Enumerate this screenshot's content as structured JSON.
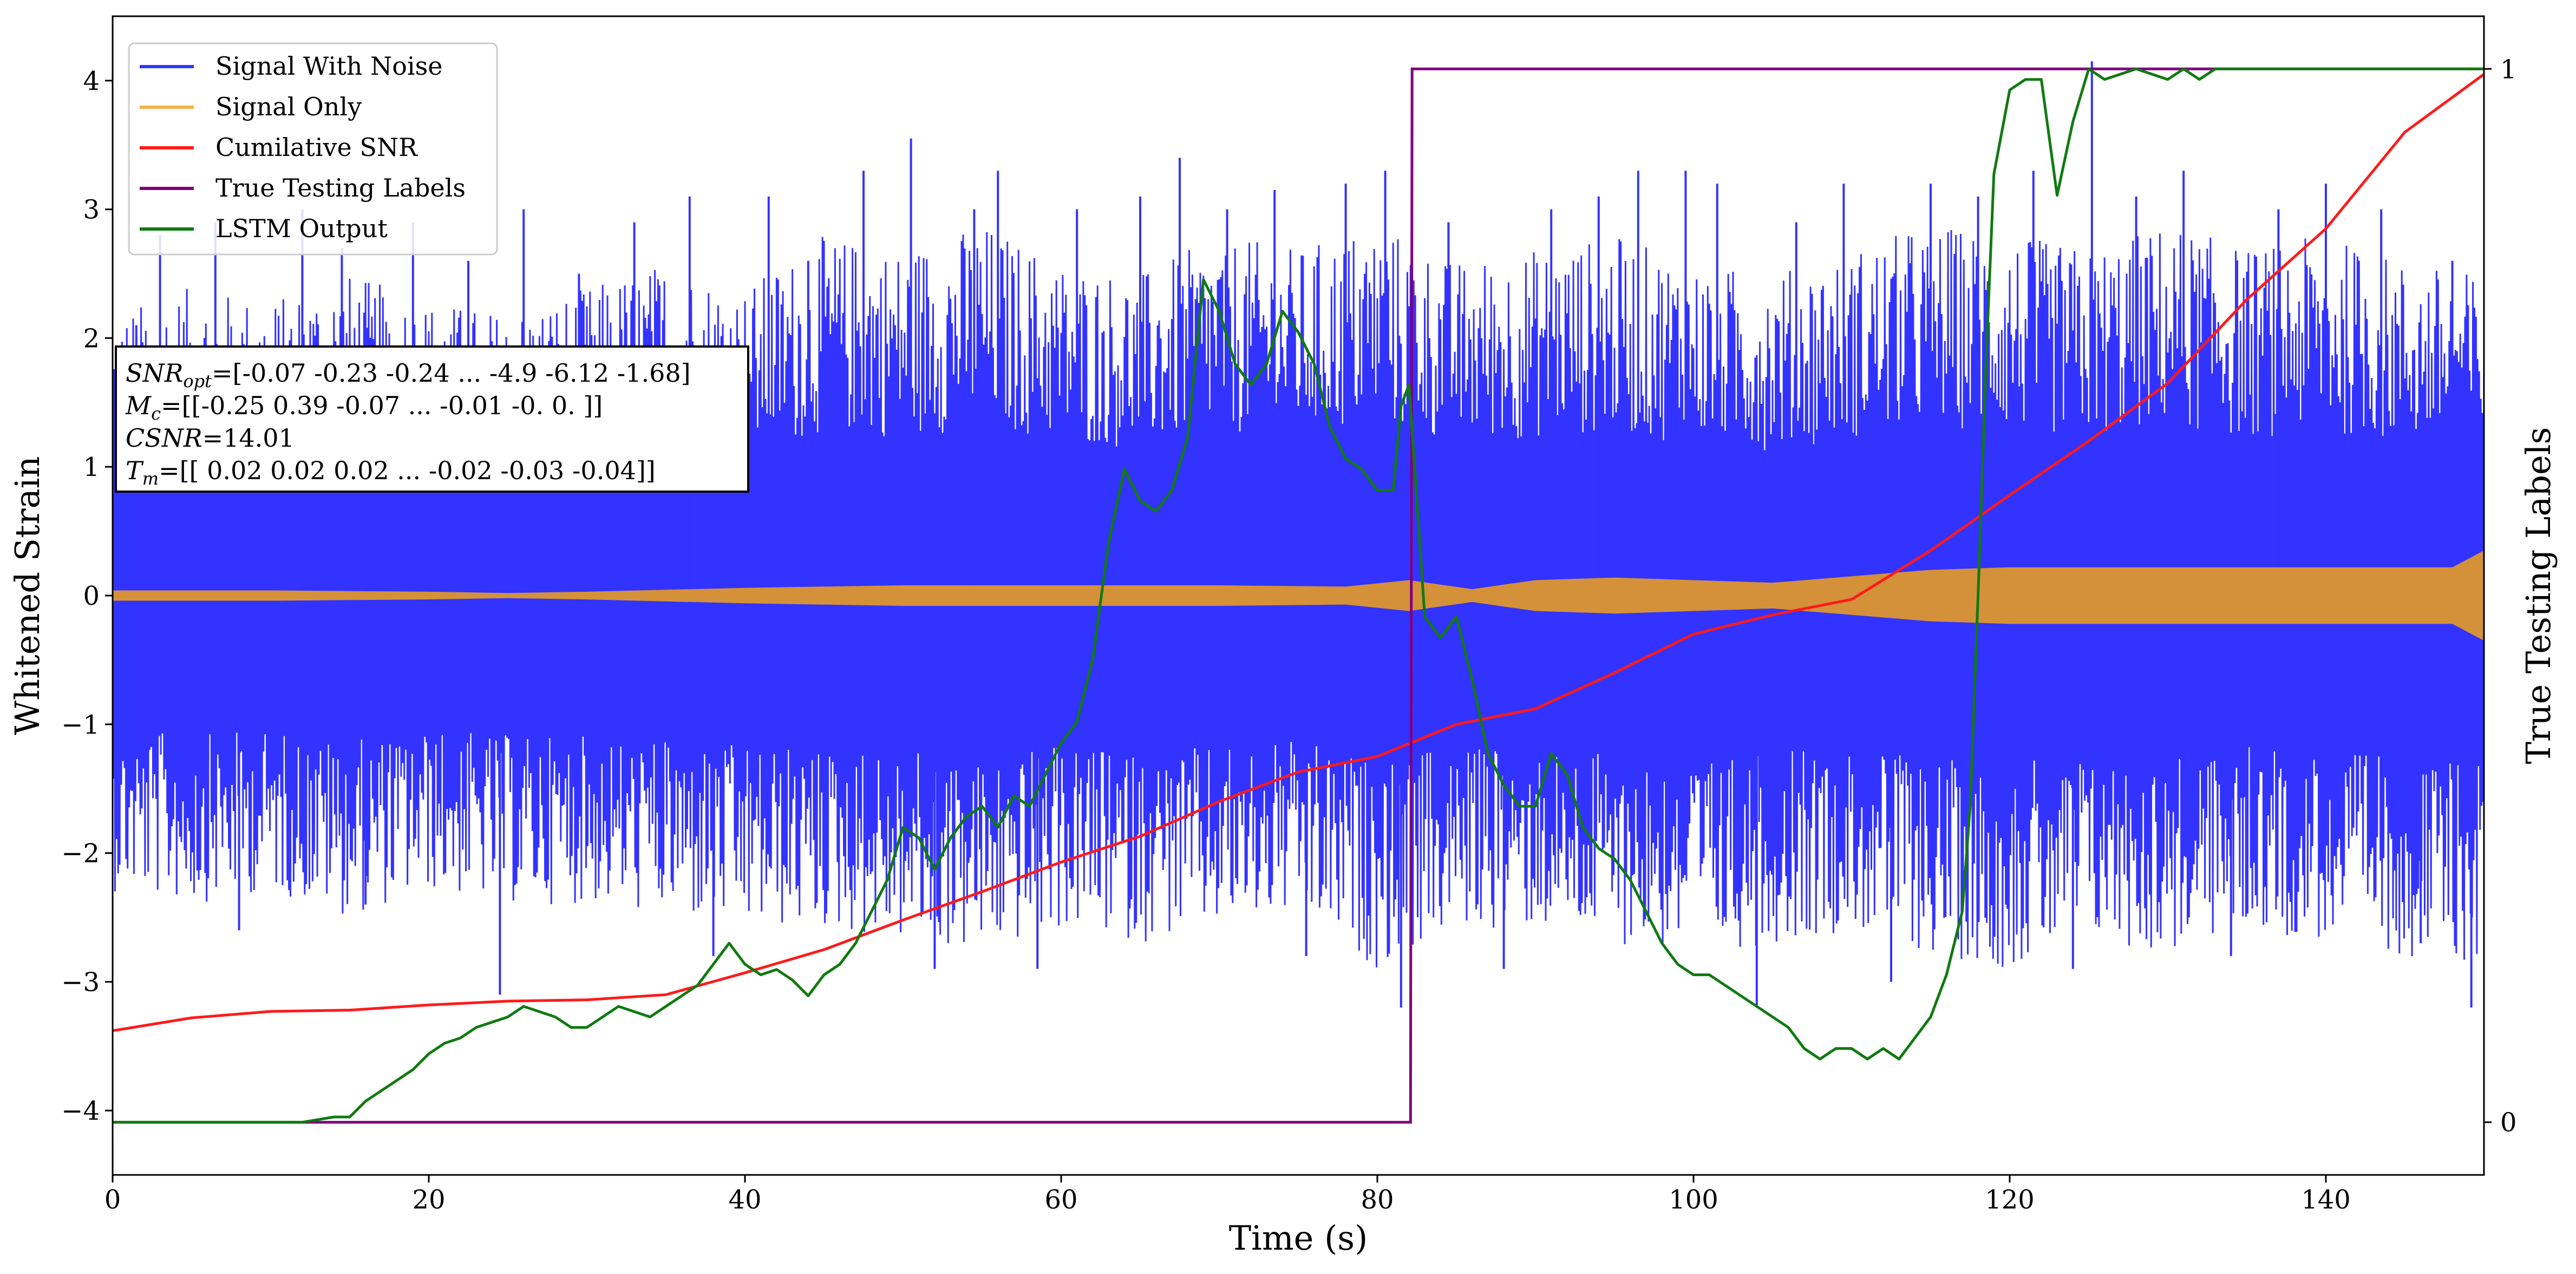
{
  "chart_data": {
    "type": "line",
    "title": "",
    "xlabel": "Time (s)",
    "ylabel": "Whitened Strain",
    "ylabel_right": "True Testing Labels",
    "xlim": [
      0,
      150
    ],
    "ylim": [
      -4.5,
      4.5
    ],
    "ylim_right": [
      -0.05,
      1.05
    ],
    "x_ticks": [
      0,
      20,
      40,
      60,
      80,
      100,
      120,
      140
    ],
    "y_ticks": [
      -4,
      -3,
      -2,
      -1,
      0,
      1,
      2,
      3,
      4
    ],
    "y_tick_labels": [
      "−4",
      "−3",
      "−2",
      "−1",
      "0",
      "1",
      "2",
      "3",
      "4"
    ],
    "y_right_ticks": [
      0,
      1
    ],
    "grid": false,
    "legend_position": "top-left",
    "colors": {
      "noise": "#3333ff",
      "signal": "#d4913a",
      "csnr": "#ff1a1a",
      "labels": "#800080",
      "lstm": "#107a10"
    },
    "series": [
      {
        "name": "Signal With Noise",
        "key": "noise",
        "axis": "left",
        "envelope_x": [
          0,
          5,
          10,
          15,
          20,
          25,
          30,
          35,
          40,
          45,
          50,
          55,
          60,
          65,
          70,
          75,
          80,
          85,
          90,
          95,
          100,
          105,
          110,
          115,
          120,
          125,
          130,
          135,
          140,
          145,
          150
        ],
        "envelope_upper": [
          2.2,
          2.4,
          2.3,
          2.5,
          2.3,
          2.2,
          2.4,
          2.6,
          2.4,
          2.8,
          2.7,
          2.9,
          2.6,
          2.5,
          2.8,
          2.7,
          2.9,
          2.6,
          2.7,
          2.8,
          2.6,
          2.5,
          2.7,
          2.9,
          2.8,
          2.7,
          2.9,
          2.7,
          2.8,
          2.6,
          2.5
        ],
        "envelope_lower": [
          -2.3,
          -2.4,
          -2.3,
          -2.5,
          -2.3,
          -2.4,
          -2.4,
          -2.5,
          -2.6,
          -2.6,
          -2.7,
          -2.8,
          -2.6,
          -2.7,
          -2.6,
          -2.5,
          -2.9,
          -2.6,
          -2.6,
          -2.7,
          -2.8,
          -2.7,
          -2.6,
          -2.8,
          -2.9,
          -2.7,
          -2.8,
          -2.6,
          -2.7,
          -2.8,
          -2.9
        ],
        "spikes": [
          {
            "x": 1.5,
            "y": 2.1
          },
          {
            "x": 3.0,
            "y": 2.8
          },
          {
            "x": 6.5,
            "y": 2.9
          },
          {
            "x": 8.0,
            "y": -2.6
          },
          {
            "x": 12.0,
            "y": 3.0
          },
          {
            "x": 14.5,
            "y": 2.7
          },
          {
            "x": 16.0,
            "y": -2.4
          },
          {
            "x": 19.0,
            "y": 2.9
          },
          {
            "x": 22.5,
            "y": 2.6
          },
          {
            "x": 24.5,
            "y": -3.1
          },
          {
            "x": 26.0,
            "y": 3.0
          },
          {
            "x": 29.5,
            "y": 2.5
          },
          {
            "x": 33.0,
            "y": 2.9
          },
          {
            "x": 36.5,
            "y": 3.1
          },
          {
            "x": 38.0,
            "y": -2.8
          },
          {
            "x": 41.5,
            "y": 3.1
          },
          {
            "x": 44.0,
            "y": 2.6
          },
          {
            "x": 47.5,
            "y": 3.3
          },
          {
            "x": 50.5,
            "y": 3.55
          },
          {
            "x": 52.0,
            "y": -2.9
          },
          {
            "x": 54.5,
            "y": 3.0
          },
          {
            "x": 56.0,
            "y": 3.3
          },
          {
            "x": 58.5,
            "y": -2.9
          },
          {
            "x": 61.0,
            "y": 3.0
          },
          {
            "x": 65.0,
            "y": 3.1
          },
          {
            "x": 67.5,
            "y": 3.4
          },
          {
            "x": 70.5,
            "y": 3.0
          },
          {
            "x": 73.5,
            "y": 3.15
          },
          {
            "x": 75.5,
            "y": -2.8
          },
          {
            "x": 78.0,
            "y": 3.2
          },
          {
            "x": 80.5,
            "y": 3.3
          },
          {
            "x": 81.5,
            "y": -3.2
          },
          {
            "x": 84.5,
            "y": 2.9
          },
          {
            "x": 88.0,
            "y": -2.9
          },
          {
            "x": 91.0,
            "y": 3.0
          },
          {
            "x": 94.0,
            "y": 3.1
          },
          {
            "x": 96.5,
            "y": 3.3
          },
          {
            "x": 99.5,
            "y": 3.3
          },
          {
            "x": 101.5,
            "y": 3.2
          },
          {
            "x": 104.0,
            "y": -3.2
          },
          {
            "x": 106.5,
            "y": 2.9
          },
          {
            "x": 109.5,
            "y": 3.2
          },
          {
            "x": 112.5,
            "y": -3.0
          },
          {
            "x": 115.0,
            "y": 3.2
          },
          {
            "x": 118.0,
            "y": 3.1
          },
          {
            "x": 121.5,
            "y": 3.3
          },
          {
            "x": 124.0,
            "y": -2.9
          },
          {
            "x": 125.2,
            "y": 4.15
          },
          {
            "x": 128.0,
            "y": 3.1
          },
          {
            "x": 131.0,
            "y": 3.3
          },
          {
            "x": 134.0,
            "y": -2.8
          },
          {
            "x": 137.0,
            "y": 3.0
          },
          {
            "x": 140.0,
            "y": 3.2
          },
          {
            "x": 143.5,
            "y": 3.0
          },
          {
            "x": 146.0,
            "y": -2.7
          },
          {
            "x": 148.0,
            "y": 2.6
          },
          {
            "x": 149.2,
            "y": -3.2
          }
        ]
      },
      {
        "name": "Signal Only",
        "key": "signal",
        "axis": "left",
        "envelope_x": [
          0,
          10,
          20,
          25,
          30,
          40,
          50,
          60,
          70,
          78,
          82,
          86,
          90,
          95,
          100,
          105,
          110,
          115,
          120,
          130,
          140,
          148,
          150
        ],
        "envelope_amp": [
          0.04,
          0.04,
          0.03,
          0.02,
          0.03,
          0.06,
          0.08,
          0.08,
          0.08,
          0.07,
          0.12,
          0.05,
          0.12,
          0.14,
          0.12,
          0.1,
          0.15,
          0.2,
          0.22,
          0.22,
          0.22,
          0.22,
          0.35
        ]
      },
      {
        "name": "Cumilative SNR",
        "key": "csnr",
        "axis": "left",
        "x": [
          0,
          5,
          10,
          15,
          20,
          25,
          30,
          35,
          40,
          45,
          50,
          55,
          60,
          65,
          70,
          75,
          80,
          85,
          90,
          95,
          100,
          105,
          110,
          115,
          120,
          125,
          130,
          135,
          140,
          145,
          150
        ],
        "y": [
          -3.38,
          -3.28,
          -3.23,
          -3.22,
          -3.18,
          -3.15,
          -3.14,
          -3.1,
          -2.93,
          -2.75,
          -2.52,
          -2.3,
          -2.07,
          -1.87,
          -1.6,
          -1.37,
          -1.25,
          -1.0,
          -0.88,
          -0.6,
          -0.3,
          -0.15,
          -0.03,
          0.35,
          0.78,
          1.2,
          1.65,
          2.3,
          2.85,
          3.6,
          4.05
        ]
      },
      {
        "name": "True Testing Labels",
        "key": "labels",
        "axis": "right",
        "x": [
          0,
          82.1,
          82.2,
          150
        ],
        "y": [
          0,
          0,
          1,
          1
        ]
      },
      {
        "name": "LSTM Output",
        "key": "lstm",
        "axis": "right",
        "x": [
          0,
          10,
          12,
          14,
          15,
          16,
          17,
          18,
          19,
          20,
          21,
          22,
          23,
          24,
          25,
          26,
          27,
          28,
          29,
          30,
          31,
          32,
          33,
          34,
          35,
          36,
          37,
          38,
          39,
          40,
          41,
          42,
          43,
          44,
          45,
          46,
          47,
          48,
          49,
          50,
          51,
          52,
          53,
          54,
          55,
          56,
          57,
          58,
          59,
          60,
          61,
          62,
          63,
          64,
          65,
          66,
          67,
          68,
          69,
          70,
          71,
          72,
          73,
          74,
          75,
          76,
          77,
          78,
          79,
          80,
          81,
          81.5,
          82,
          83,
          84,
          85,
          86,
          87,
          88,
          89,
          90,
          91,
          92,
          93,
          94,
          95,
          96,
          97,
          98,
          99,
          100,
          101,
          102,
          103,
          104,
          105,
          106,
          107,
          108,
          109,
          110,
          111,
          112,
          113,
          114,
          115,
          116,
          117,
          117.5,
          118,
          118.5,
          119,
          120,
          121,
          122,
          123,
          124,
          125,
          126,
          128,
          130,
          131,
          132,
          133,
          135,
          140,
          145,
          148,
          150
        ],
        "y": [
          0.0,
          0.0,
          0.0,
          0.005,
          0.005,
          0.02,
          0.03,
          0.04,
          0.05,
          0.065,
          0.075,
          0.08,
          0.09,
          0.095,
          0.1,
          0.11,
          0.105,
          0.1,
          0.09,
          0.09,
          0.1,
          0.11,
          0.105,
          0.1,
          0.11,
          0.12,
          0.13,
          0.15,
          0.17,
          0.15,
          0.14,
          0.145,
          0.135,
          0.12,
          0.14,
          0.15,
          0.17,
          0.2,
          0.23,
          0.28,
          0.27,
          0.24,
          0.27,
          0.29,
          0.3,
          0.28,
          0.31,
          0.3,
          0.33,
          0.36,
          0.38,
          0.44,
          0.55,
          0.62,
          0.59,
          0.58,
          0.6,
          0.65,
          0.8,
          0.77,
          0.72,
          0.7,
          0.72,
          0.77,
          0.75,
          0.72,
          0.66,
          0.63,
          0.62,
          0.6,
          0.6,
          0.68,
          0.7,
          0.48,
          0.46,
          0.48,
          0.42,
          0.35,
          0.32,
          0.3,
          0.3,
          0.35,
          0.33,
          0.28,
          0.26,
          0.25,
          0.23,
          0.2,
          0.17,
          0.15,
          0.14,
          0.14,
          0.13,
          0.12,
          0.11,
          0.1,
          0.09,
          0.07,
          0.06,
          0.07,
          0.07,
          0.06,
          0.07,
          0.06,
          0.08,
          0.1,
          0.14,
          0.2,
          0.3,
          0.5,
          0.72,
          0.9,
          0.98,
          0.99,
          0.99,
          0.88,
          0.95,
          1.0,
          0.99,
          1.0,
          0.99,
          1.0,
          0.99,
          1.0,
          1.0,
          1.0,
          1.0,
          1.0,
          1.0
        ]
      }
    ],
    "annotation": {
      "line1": "=[-0.07 -0.23 -0.24 ... -4.9  -6.12 -1.68]",
      "line1_prefix": "SNR",
      "line1_sub": "opt",
      "line2": "=[[-0.25  0.39 -0.07 ... -0.01 -0.    0.  ]]",
      "line2_prefix": "M",
      "line2_sub": "c",
      "line3": "=14.01",
      "line3_prefix": "CSNR",
      "line4": "=[[ 0.02  0.02  0.02 ... -0.02 -0.03 -0.04]]",
      "line4_prefix": "T",
      "line4_sub": "m"
    }
  }
}
